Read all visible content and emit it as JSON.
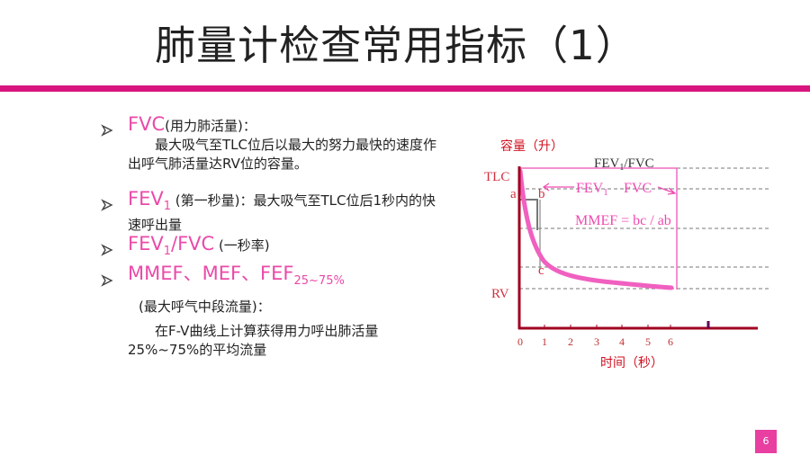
{
  "title": "肺量计检查常用指标（1）",
  "bullets": [
    {
      "term": "FVC",
      "note": "(用力肺活量)：",
      "desc": "最大吸气至TLC位后以最大的努力最快的速度作出呼气肺活量达RV位的容量。"
    },
    {
      "term": "FEV",
      "sub": "1",
      "note": " (第一秒量)：最大吸气至TLC位后1秒内的快速呼出量"
    },
    {
      "term": "FEV",
      "sub": "1",
      "rest": "/FVC",
      "note": " (一秒率)"
    },
    {
      "term": "MMEF、MEF、FEF",
      "sub": "25~75%",
      "note": "(最大呼气中段流量)：",
      "desc": "在F-V曲线上计算获得用力呼出肺活量25%~75%的平均流量"
    }
  ],
  "diagram": {
    "y_label": "容量（升）",
    "x_label": "时间（秒）",
    "tlc": "TLC",
    "rv": "RV",
    "a": "a",
    "b": "b",
    "c": "c",
    "ratio": {
      "text": "FEV",
      "sub": "1",
      "rest": "/FVC"
    },
    "fev1": {
      "text": "FEV",
      "sub": "1"
    },
    "fvc": "FVC",
    "formula": "MMEF = bc / ab",
    "x_ticks": [
      "0",
      "1",
      "2",
      "3",
      "4",
      "5",
      "6"
    ]
  },
  "page_number": "6"
}
